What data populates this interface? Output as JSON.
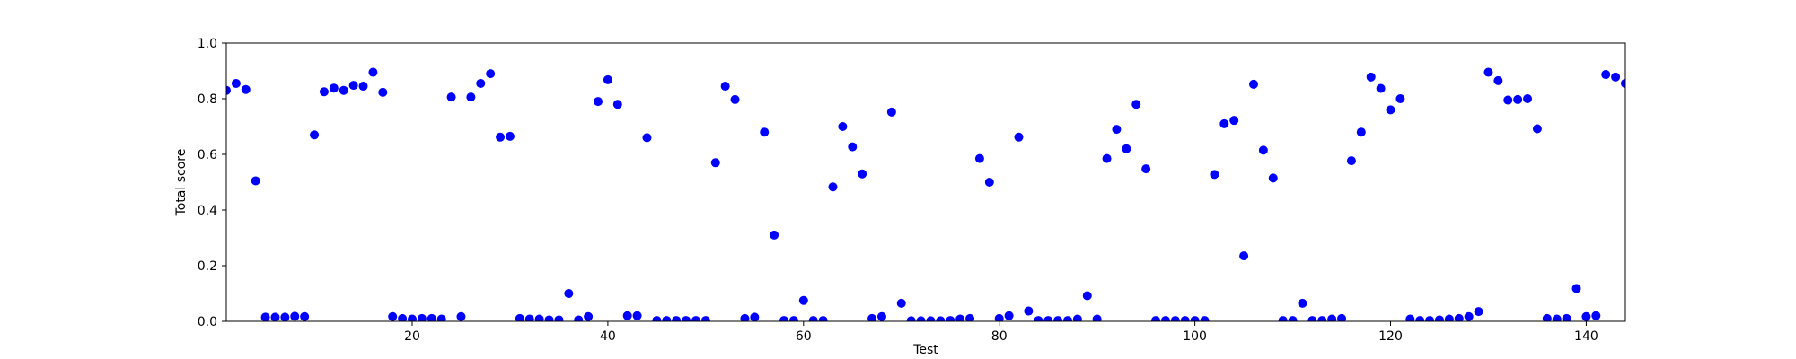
{
  "chart_data": {
    "type": "scatter",
    "xlabel": "Test",
    "ylabel": "Total score",
    "xlim": [
      1,
      144
    ],
    "ylim": [
      0.0,
      1.0
    ],
    "grid": false,
    "point_color": "#0000ff",
    "xticks": [
      20,
      40,
      60,
      80,
      100,
      120,
      140
    ],
    "xtick_labels": [
      "20",
      "40",
      "60",
      "80",
      "100",
      "120",
      "140"
    ],
    "yticks": [
      0.0,
      0.2,
      0.4,
      0.6,
      0.8,
      1.0
    ],
    "ytick_labels": [
      "0.0",
      "0.2",
      "0.4",
      "0.6",
      "0.8",
      "1.0"
    ],
    "x": [
      1,
      2,
      3,
      4,
      5,
      6,
      7,
      8,
      9,
      10,
      11,
      12,
      13,
      14,
      15,
      16,
      17,
      18,
      19,
      20,
      21,
      22,
      23,
      24,
      25,
      26,
      27,
      28,
      29,
      30,
      31,
      32,
      33,
      34,
      35,
      36,
      37,
      38,
      39,
      40,
      41,
      42,
      43,
      44,
      45,
      46,
      47,
      48,
      49,
      50,
      51,
      52,
      53,
      54,
      55,
      56,
      57,
      58,
      59,
      60,
      61,
      62,
      63,
      64,
      65,
      66,
      67,
      68,
      69,
      70,
      71,
      72,
      73,
      74,
      75,
      76,
      77,
      78,
      79,
      80,
      81,
      82,
      83,
      84,
      85,
      86,
      87,
      88,
      89,
      90,
      91,
      92,
      93,
      94,
      95,
      96,
      97,
      98,
      99,
      100,
      101,
      102,
      103,
      104,
      105,
      106,
      107,
      108,
      109,
      110,
      111,
      112,
      113,
      114,
      115,
      116,
      117,
      118,
      119,
      120,
      121,
      122,
      123,
      124,
      125,
      126,
      127,
      128,
      129,
      130,
      131,
      132,
      133,
      134,
      135,
      136,
      137,
      138,
      139,
      140,
      141,
      142,
      143,
      144
    ],
    "y": [
      0.83,
      0.855,
      0.833,
      0.505,
      0.015,
      0.015,
      0.015,
      0.018,
      0.017,
      0.67,
      0.825,
      0.838,
      0.83,
      0.848,
      0.845,
      0.895,
      0.823,
      0.017,
      0.01,
      0.008,
      0.01,
      0.01,
      0.008,
      0.806,
      0.017,
      0.806,
      0.855,
      0.89,
      0.662,
      0.665,
      0.01,
      0.008,
      0.008,
      0.005,
      0.005,
      0.1,
      0.005,
      0.017,
      0.79,
      0.868,
      0.78,
      0.02,
      0.02,
      0.66,
      0.003,
      0.003,
      0.003,
      0.003,
      0.003,
      0.003,
      0.57,
      0.845,
      0.797,
      0.01,
      0.015,
      0.68,
      0.31,
      0.003,
      0.003,
      0.075,
      0.003,
      0.003,
      0.483,
      0.7,
      0.627,
      0.53,
      0.01,
      0.017,
      0.752,
      0.065,
      0.002,
      0.002,
      0.002,
      0.002,
      0.003,
      0.008,
      0.01,
      0.585,
      0.5,
      0.01,
      0.02,
      0.662,
      0.037,
      0.003,
      0.003,
      0.003,
      0.003,
      0.008,
      0.092,
      0.008,
      0.585,
      0.69,
      0.62,
      0.78,
      0.548,
      0.003,
      0.003,
      0.003,
      0.003,
      0.003,
      0.003,
      0.528,
      0.71,
      0.722,
      0.235,
      0.852,
      0.615,
      0.515,
      0.003,
      0.003,
      0.065,
      0.003,
      0.003,
      0.008,
      0.01,
      0.577,
      0.68,
      0.878,
      0.837,
      0.76,
      0.8,
      0.008,
      0.003,
      0.003,
      0.005,
      0.008,
      0.01,
      0.017,
      0.035,
      0.895,
      0.865,
      0.795,
      0.797,
      0.8,
      0.692,
      0.01,
      0.008,
      0.01,
      0.118,
      0.017,
      0.02,
      0.887,
      0.878,
      0.855
    ]
  }
}
